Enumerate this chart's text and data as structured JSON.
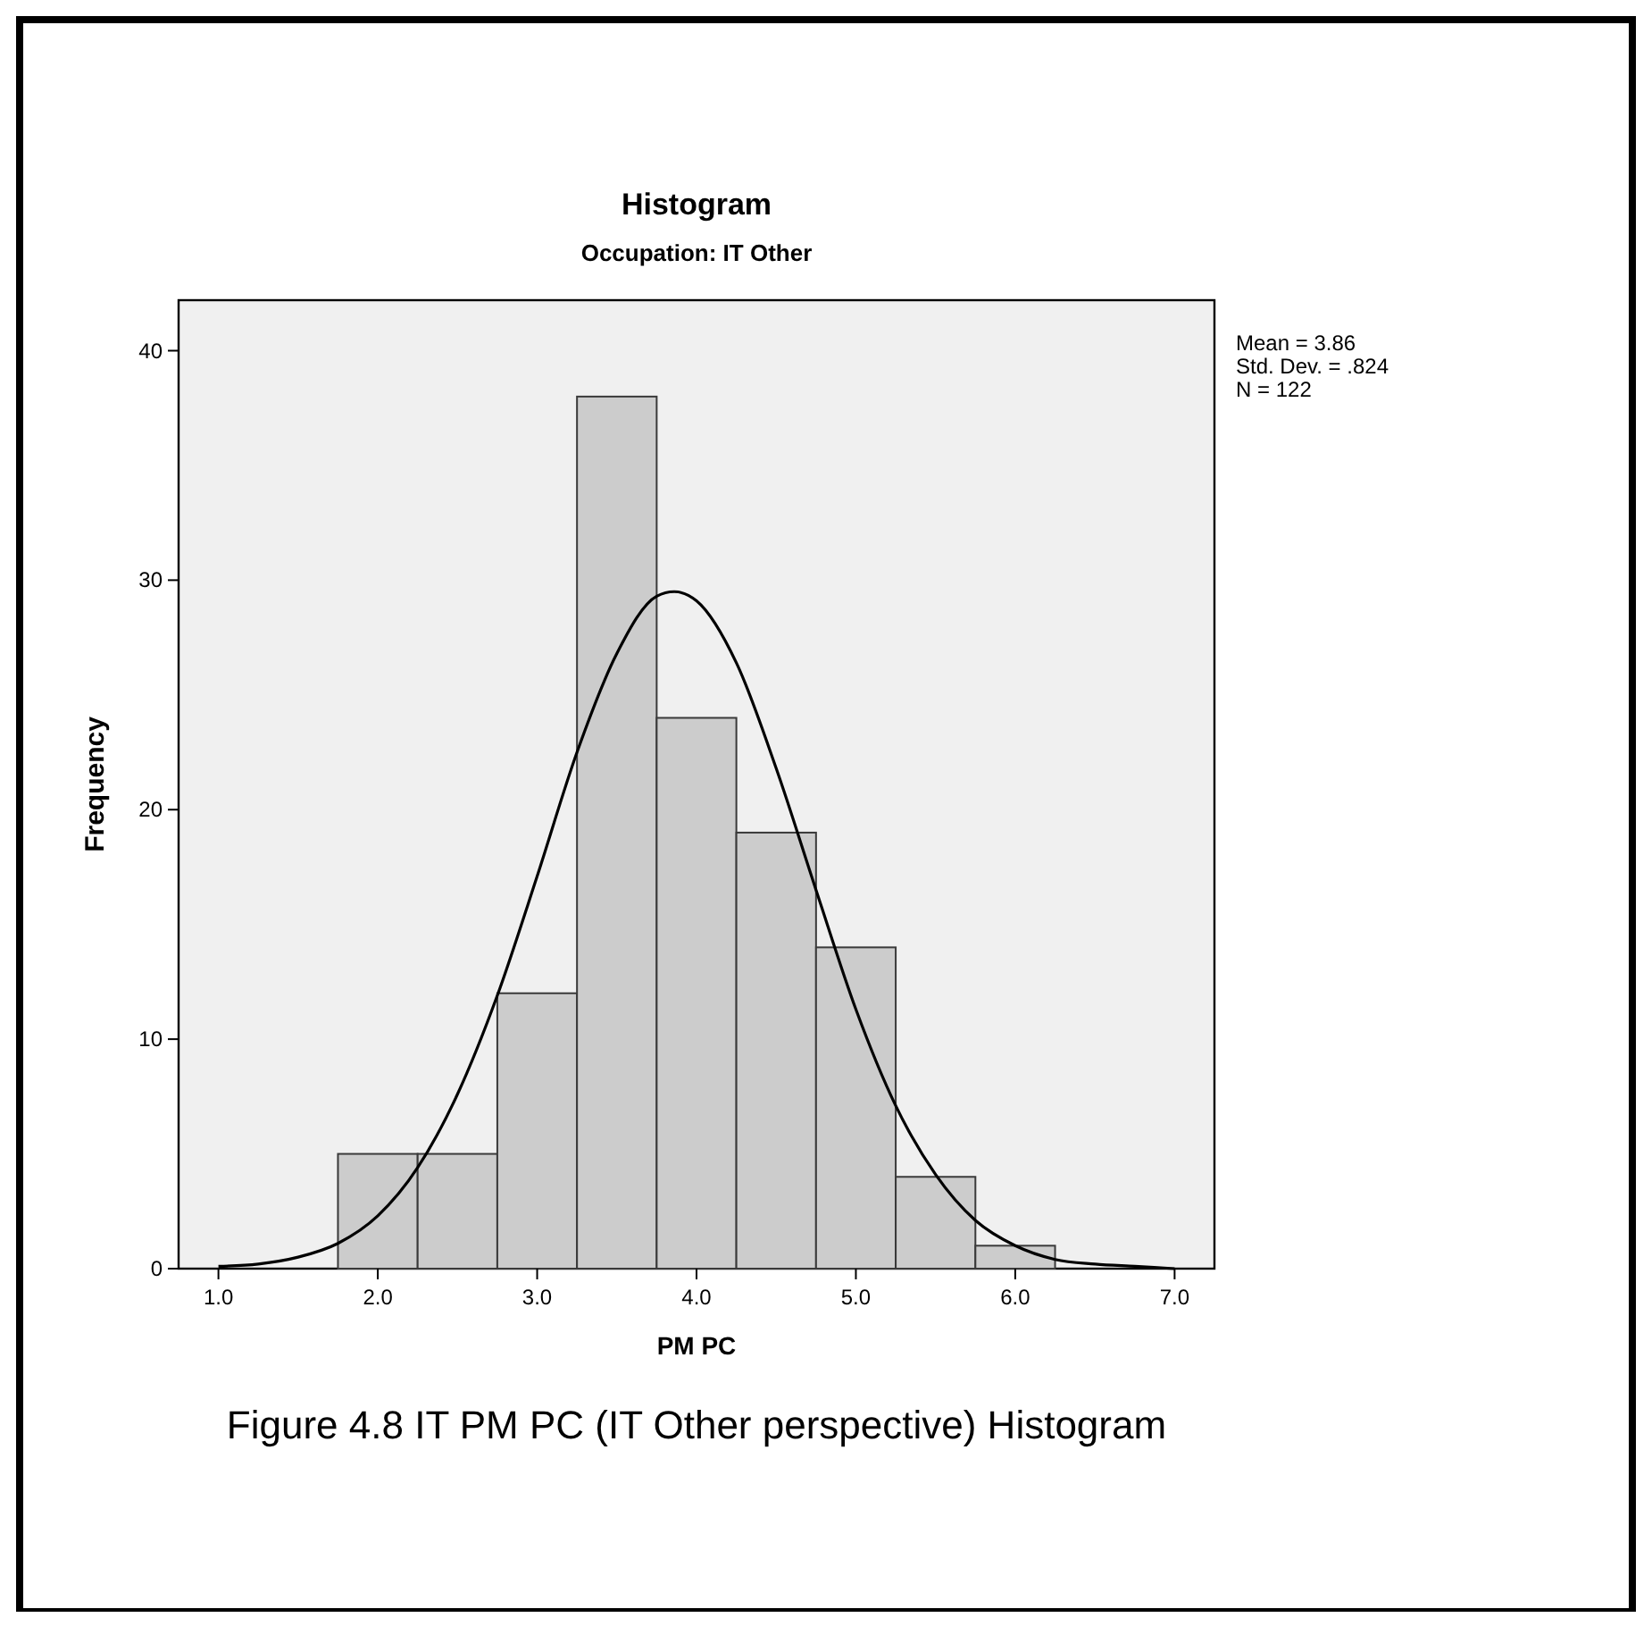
{
  "chart_data": {
    "type": "histogram",
    "title": "Histogram",
    "subtitle": "Occupation: IT Other",
    "xlabel": "PM PC",
    "ylabel": "Frequency",
    "bins": [
      1.75,
      2.25,
      2.75,
      3.25,
      3.75,
      4.25,
      4.75,
      5.25,
      5.75,
      6.25
    ],
    "values": [
      5,
      5,
      12,
      38,
      24,
      19,
      14,
      4,
      1
    ],
    "color": "#cccccc",
    "series": [
      {
        "type": "line",
        "color": "#000000",
        "x": [
          1.0,
          1.25,
          1.5,
          1.75,
          2.0,
          2.25,
          2.5,
          2.75,
          3.0,
          3.25,
          3.5,
          3.75,
          3.86,
          4.0,
          4.25,
          4.5,
          4.75,
          5.0,
          5.25,
          5.5,
          5.75,
          6.0,
          6.25,
          6.5,
          6.75,
          7.0
        ],
        "values": [
          0.1,
          0.2,
          0.5,
          1.1,
          2.3,
          4.4,
          7.6,
          11.9,
          17.1,
          22.5,
          26.8,
          29.3,
          29.5,
          29.1,
          26.4,
          21.8,
          16.5,
          11.3,
          7.1,
          4.1,
          2.1,
          1.0,
          0.4,
          0.2,
          0.1,
          0.0
        ]
      }
    ],
    "xlim": [
      0.75,
      7.25
    ],
    "ylim": [
      0,
      42.2
    ],
    "xticks": [
      {
        "value": 1,
        "label": "1.0"
      },
      {
        "value": 2,
        "label": "2.0"
      },
      {
        "value": 3,
        "label": "3.0"
      },
      {
        "value": 4,
        "label": "4.0"
      },
      {
        "value": 5,
        "label": "5.0"
      },
      {
        "value": 6,
        "label": "6.0"
      },
      {
        "value": 7,
        "label": "7.0"
      }
    ],
    "yticks": [
      0,
      10,
      20,
      30,
      40
    ],
    "grid": false,
    "annotations": [
      "Mean = 3.86",
      "Std. Dev. = .824",
      "N = 122",
      "Figure 4.8 IT PM PC (IT Other perspective) Histogram"
    ]
  }
}
